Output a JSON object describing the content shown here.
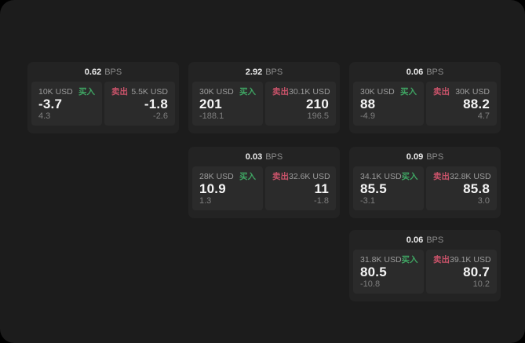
{
  "labels": {
    "bps_suffix": "BPS",
    "buy": "买入",
    "sell": "卖出"
  },
  "colors": {
    "page_surface": "#1c1c1c",
    "card_bg": "#232323",
    "panel_bg": "#2b2b2b",
    "buy_green": "#3fa563",
    "sell_red": "#c9536a",
    "text_primary": "#f5f5f5",
    "text_secondary": "#9c9c9c",
    "text_muted": "#7f7f7f"
  },
  "cards": [
    {
      "bps": "0.62",
      "buy": {
        "size": "10K USD",
        "price": "-3.7",
        "delta": "4.3"
      },
      "sell": {
        "size": "5.5K USD",
        "price": "-1.8",
        "delta": "-2.6"
      }
    },
    {
      "bps": "2.92",
      "buy": {
        "size": "30K USD",
        "price": "201",
        "delta": "-188.1"
      },
      "sell": {
        "size": "30.1K USD",
        "price": "210",
        "delta": "196.5"
      }
    },
    {
      "bps": "0.06",
      "buy": {
        "size": "30K USD",
        "price": "88",
        "delta": "-4.9"
      },
      "sell": {
        "size": "30K USD",
        "price": "88.2",
        "delta": "4.7"
      }
    },
    {
      "bps": "0.03",
      "buy": {
        "size": "28K USD",
        "price": "10.9",
        "delta": "1.3"
      },
      "sell": {
        "size": "32.6K USD",
        "price": "11",
        "delta": "-1.8"
      }
    },
    {
      "bps": "0.09",
      "buy": {
        "size": "34.1K USD",
        "price": "85.5",
        "delta": "-3.1"
      },
      "sell": {
        "size": "32.8K USD",
        "price": "85.8",
        "delta": "3.0"
      }
    },
    {
      "bps": "0.06",
      "buy": {
        "size": "31.8K USD",
        "price": "80.5",
        "delta": "-10.8"
      },
      "sell": {
        "size": "39.1K USD",
        "price": "80.7",
        "delta": "10.2"
      }
    }
  ]
}
